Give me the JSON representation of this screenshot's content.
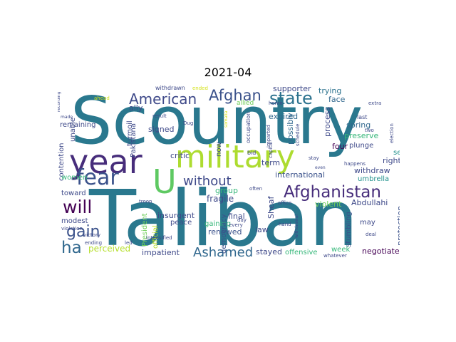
{
  "title": "2021-04",
  "palette": {
    "purple": "#46327e",
    "teal": "#277f8e",
    "blue": "#365c8d",
    "green": "#1fa187",
    "lime": "#a0da39",
    "yellow": "#d4e21a",
    "dark": "#440154",
    "mid": "#4ac16d"
  },
  "words": [
    {
      "text": "Scountry",
      "color": "#2a788e"
    },
    {
      "text": "Taliban",
      "color": "#2a788e"
    },
    {
      "text": "year",
      "color": "#472d7b"
    },
    {
      "text": "military",
      "color": "#addc30"
    },
    {
      "text": "fear",
      "color": "#3b528b"
    },
    {
      "text": "U",
      "color": "#5ec962"
    },
    {
      "text": "American",
      "color": "#3e4989"
    },
    {
      "text": "Afghan",
      "color": "#3b528b"
    },
    {
      "text": "state",
      "color": "#2c728e"
    },
    {
      "text": "Afghanistan",
      "color": "#472d7b"
    },
    {
      "text": "without",
      "color": "#3e4989"
    },
    {
      "text": "will",
      "color": "#440154"
    },
    {
      "text": "gain",
      "color": "#3b528b"
    },
    {
      "text": "ha",
      "color": "#31688e"
    },
    {
      "text": "Ashamed",
      "color": "#31688e"
    },
    {
      "text": "perceived",
      "color": "#b5de2b"
    },
    {
      "text": "impatient",
      "color": "#3e4989"
    },
    {
      "text": "stayed",
      "color": "#3e4989"
    },
    {
      "text": "offensive",
      "color": "#35b779"
    },
    {
      "text": "negotiate",
      "color": "#440154"
    },
    {
      "text": "protection",
      "color": "#3b528b"
    },
    {
      "text": "process",
      "color": "#3e4989"
    },
    {
      "text": "expired",
      "color": "#31688e"
    },
    {
      "text": "trying",
      "color": "#2c728e"
    },
    {
      "text": "face",
      "color": "#31688e"
    },
    {
      "text": "supporter",
      "color": "#3e4989"
    },
    {
      "text": "international",
      "color": "#3b528b"
    },
    {
      "text": "withdraw",
      "color": "#3e4989"
    },
    {
      "text": "umbrella",
      "color": "#21918c"
    },
    {
      "text": "Abdullahi",
      "color": "#3e4989"
    },
    {
      "text": "stumbling",
      "color": "#3b528b"
    },
    {
      "text": "violent",
      "color": "#6ece58"
    },
    {
      "text": "Sheaf",
      "color": "#3e4989"
    },
    {
      "text": "final",
      "color": "#3e4989"
    },
    {
      "text": "renewed",
      "color": "#3b528b"
    },
    {
      "text": "gaining",
      "color": "#35b779"
    },
    {
      "text": "fragile",
      "color": "#3e4989"
    },
    {
      "text": "democracy",
      "color": "#3b528b"
    },
    {
      "text": "law",
      "color": "#3e4989"
    },
    {
      "text": "insurgent",
      "color": "#3e4989"
    },
    {
      "text": "peace",
      "color": "#3e4989"
    },
    {
      "text": "group",
      "color": "#35b779"
    },
    {
      "text": "now",
      "color": "#3e4989"
    },
    {
      "text": "term",
      "color": "#3e4989"
    },
    {
      "text": "four",
      "color": "#440154"
    },
    {
      "text": "plunge",
      "color": "#3e4989"
    },
    {
      "text": "right",
      "color": "#3e4989"
    },
    {
      "text": "set",
      "color": "#21918c"
    },
    {
      "text": "spring",
      "color": "#31688e"
    },
    {
      "text": "preserve",
      "color": "#35b779"
    },
    {
      "text": "possibly",
      "color": "#31688e"
    },
    {
      "text": "signed",
      "color": "#3e4989"
    },
    {
      "text": "critic",
      "color": "#3e4989"
    },
    {
      "text": "ally",
      "color": "#3e4989"
    },
    {
      "text": "remaining",
      "color": "#3e4989"
    },
    {
      "text": "unable",
      "color": "#3e4989"
    },
    {
      "text": "contention",
      "color": "#3e4989"
    },
    {
      "text": "women",
      "color": "#35b779"
    },
    {
      "text": "toward",
      "color": "#3e4989"
    },
    {
      "text": "modest",
      "color": "#3e4989"
    },
    {
      "text": "turmoil",
      "color": "#3e4989"
    },
    {
      "text": "Pakistana",
      "color": "#3e4989"
    },
    {
      "text": "President",
      "color": "#6ece58"
    },
    {
      "text": "official",
      "color": "#b5de2b"
    },
    {
      "text": "allied",
      "color": "#6ece58"
    },
    {
      "text": "may",
      "color": "#3e4989"
    },
    {
      "text": "week",
      "color": "#35b779"
    },
    {
      "text": "withdrawn",
      "color": "#3e4989"
    },
    {
      "text": "result",
      "color": "#3e4989"
    },
    {
      "text": "Dug",
      "color": "#3e4989"
    },
    {
      "text": "occupation",
      "color": "#3e4989"
    },
    {
      "text": "imparted",
      "color": "#3e4989"
    },
    {
      "text": "schedule",
      "color": "#3e4989"
    },
    {
      "text": "last",
      "color": "#3e4989"
    },
    {
      "text": "two",
      "color": "#3e4989"
    },
    {
      "text": "election",
      "color": "#3e4989"
    },
    {
      "text": "extra",
      "color": "#3e4989"
    },
    {
      "text": "home",
      "color": "#3e4989"
    },
    {
      "text": "happens",
      "color": "#3e4989"
    },
    {
      "text": "stay",
      "color": "#3e4989"
    },
    {
      "text": "bid",
      "color": "#3e4989"
    },
    {
      "text": "capital",
      "color": "#3e4989"
    },
    {
      "text": "often",
      "color": "#3e4989"
    },
    {
      "text": "office",
      "color": "#3e4989"
    },
    {
      "text": "every",
      "color": "#3e4989"
    },
    {
      "text": "day",
      "color": "#3e4989"
    },
    {
      "text": "hand",
      "color": "#3e4989"
    },
    {
      "text": "deal",
      "color": "#3e4989"
    },
    {
      "text": "whatever",
      "color": "#3e4989"
    },
    {
      "text": "led",
      "color": "#3e4989"
    },
    {
      "text": "ending",
      "color": "#3e4989"
    },
    {
      "text": "victory",
      "color": "#3e4989"
    },
    {
      "text": "violation",
      "color": "#3e4989"
    },
    {
      "text": "troop",
      "color": "#3e4989"
    },
    {
      "text": "intensified",
      "color": "#3e4989"
    },
    {
      "text": "recording",
      "color": "#3e4989"
    },
    {
      "text": "made",
      "color": "#3e4989"
    },
    {
      "text": "ahead",
      "color": "#d4e21a"
    },
    {
      "text": "ended",
      "color": "#d4e21a"
    },
    {
      "text": "somalia",
      "color": "#d4e21a"
    },
    {
      "text": "even",
      "color": "#3e4989"
    },
    {
      "text": "withdrawal",
      "color": "#3e4989"
    }
  ]
}
